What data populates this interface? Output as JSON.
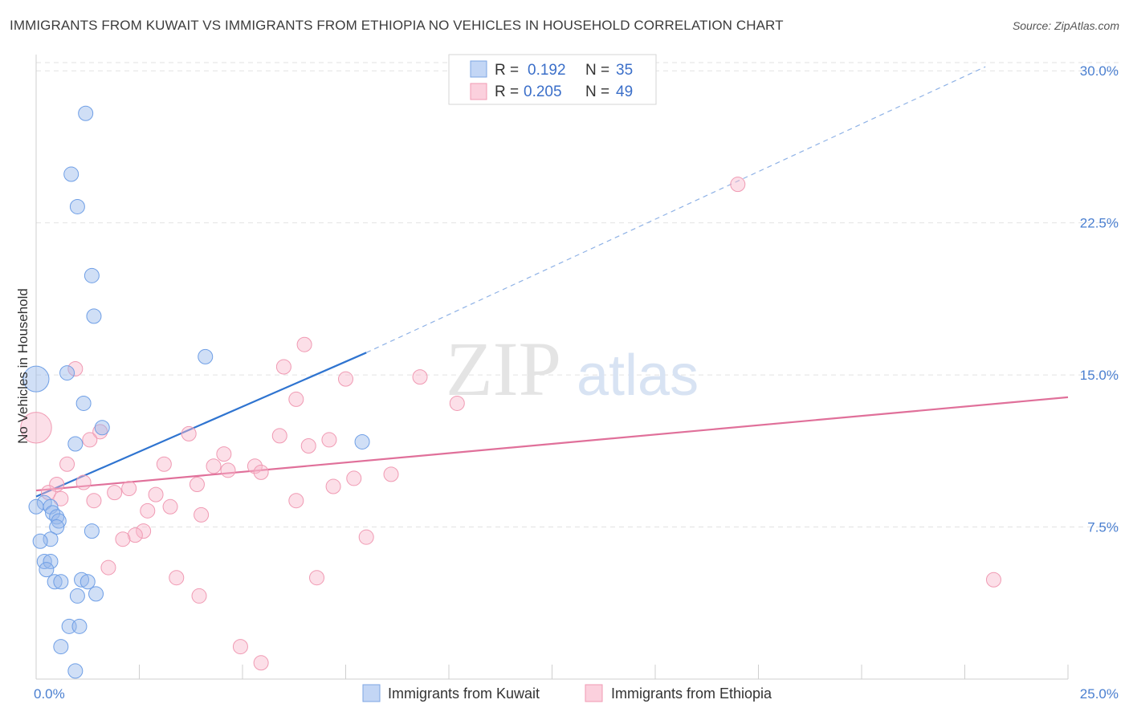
{
  "header": {
    "title": "IMMIGRANTS FROM KUWAIT VS IMMIGRANTS FROM ETHIOPIA NO VEHICLES IN HOUSEHOLD CORRELATION CHART",
    "source": "Source: ZipAtlas.com"
  },
  "watermark": {
    "zip": "ZIP",
    "atlas": "atlas"
  },
  "legend_box": {
    "r_label": "R =",
    "n_label": "N =",
    "rows": [
      {
        "r": "0.192",
        "n": "35"
      },
      {
        "r": "0.205",
        "n": "49"
      }
    ]
  },
  "chart_data": {
    "type": "scatter",
    "title": "IMMIGRANTS FROM KUWAIT VS IMMIGRANTS FROM ETHIOPIA NO VEHICLES IN HOUSEHOLD CORRELATION CHART",
    "xlabel": "",
    "ylabel": "No Vehicles in Household",
    "xlim": [
      0,
      25
    ],
    "ylim": [
      0,
      30.8
    ],
    "x_tick_labels": [
      "0.0%",
      "25.0%"
    ],
    "y_ticks": [
      7.5,
      15.0,
      22.5,
      30.0
    ],
    "y_tick_labels": [
      "7.5%",
      "15.0%",
      "22.5%",
      "30.0%"
    ],
    "grid": true,
    "legend_position": "bottom-center",
    "colors": {
      "kuwait": "#6f9fe6",
      "ethiopia": "#f09ab3",
      "kuwait_line": "#2f74d0",
      "ethiopia_line": "#e0709a"
    },
    "series": [
      {
        "name": "Immigrants from Kuwait",
        "r": 0.192,
        "n": 35,
        "trend": {
          "x_start": 0.0,
          "y_start": 9.0,
          "x_solid_end": 8.0,
          "y_solid_end": 16.1,
          "x_dash_end": 23.0,
          "y_dash_end": 30.2
        },
        "points": [
          {
            "x": 1.2,
            "y": 27.9,
            "s": 8
          },
          {
            "x": 0.85,
            "y": 24.9,
            "s": 8
          },
          {
            "x": 1.0,
            "y": 23.3,
            "s": 8
          },
          {
            "x": 1.35,
            "y": 19.9,
            "s": 8
          },
          {
            "x": 1.4,
            "y": 17.9,
            "s": 8
          },
          {
            "x": 4.1,
            "y": 15.9,
            "s": 8
          },
          {
            "x": 0.0,
            "y": 14.8,
            "s": 12
          },
          {
            "x": 0.75,
            "y": 15.1,
            "s": 8
          },
          {
            "x": 1.15,
            "y": 13.6,
            "s": 8
          },
          {
            "x": 1.6,
            "y": 12.4,
            "s": 8
          },
          {
            "x": 0.95,
            "y": 11.6,
            "s": 8
          },
          {
            "x": 7.9,
            "y": 11.7,
            "s": 8
          },
          {
            "x": 0.2,
            "y": 8.7,
            "s": 8
          },
          {
            "x": 0.35,
            "y": 8.5,
            "s": 8
          },
          {
            "x": 0.0,
            "y": 8.5,
            "s": 8
          },
          {
            "x": 0.4,
            "y": 8.2,
            "s": 8
          },
          {
            "x": 0.5,
            "y": 8.0,
            "s": 8
          },
          {
            "x": 0.55,
            "y": 7.8,
            "s": 8
          },
          {
            "x": 0.5,
            "y": 7.5,
            "s": 8
          },
          {
            "x": 1.35,
            "y": 7.3,
            "s": 8
          },
          {
            "x": 0.35,
            "y": 6.9,
            "s": 8
          },
          {
            "x": 0.1,
            "y": 6.8,
            "s": 8
          },
          {
            "x": 0.2,
            "y": 5.8,
            "s": 8
          },
          {
            "x": 0.35,
            "y": 5.8,
            "s": 8
          },
          {
            "x": 0.25,
            "y": 5.4,
            "s": 8
          },
          {
            "x": 0.45,
            "y": 4.8,
            "s": 8
          },
          {
            "x": 0.6,
            "y": 4.8,
            "s": 8
          },
          {
            "x": 1.1,
            "y": 4.9,
            "s": 8
          },
          {
            "x": 1.25,
            "y": 4.8,
            "s": 8
          },
          {
            "x": 1.45,
            "y": 4.2,
            "s": 8
          },
          {
            "x": 1.0,
            "y": 4.1,
            "s": 8
          },
          {
            "x": 0.8,
            "y": 2.6,
            "s": 8
          },
          {
            "x": 1.05,
            "y": 2.6,
            "s": 8
          },
          {
            "x": 0.6,
            "y": 1.6,
            "s": 8
          },
          {
            "x": 0.95,
            "y": 0.4,
            "s": 8
          }
        ]
      },
      {
        "name": "Immigrants from Ethiopia",
        "r": 0.205,
        "n": 49,
        "trend": {
          "x_start": 0.0,
          "y_start": 9.3,
          "x_end": 25.0,
          "y_end": 13.9
        },
        "points": [
          {
            "x": 17.0,
            "y": 24.4,
            "s": 8
          },
          {
            "x": 6.5,
            "y": 16.5,
            "s": 8
          },
          {
            "x": 0.95,
            "y": 15.3,
            "s": 8
          },
          {
            "x": 6.0,
            "y": 15.4,
            "s": 8
          },
          {
            "x": 7.5,
            "y": 14.8,
            "s": 8
          },
          {
            "x": 9.3,
            "y": 14.9,
            "s": 8
          },
          {
            "x": 6.3,
            "y": 13.8,
            "s": 8
          },
          {
            "x": 10.2,
            "y": 13.6,
            "s": 8
          },
          {
            "x": 0.0,
            "y": 12.4,
            "s": 14
          },
          {
            "x": 1.55,
            "y": 12.2,
            "s": 8
          },
          {
            "x": 3.7,
            "y": 12.1,
            "s": 8
          },
          {
            "x": 5.9,
            "y": 12.0,
            "s": 8
          },
          {
            "x": 1.3,
            "y": 11.8,
            "s": 8
          },
          {
            "x": 7.1,
            "y": 11.8,
            "s": 8
          },
          {
            "x": 6.6,
            "y": 11.5,
            "s": 8
          },
          {
            "x": 4.55,
            "y": 11.1,
            "s": 8
          },
          {
            "x": 0.75,
            "y": 10.6,
            "s": 8
          },
          {
            "x": 3.1,
            "y": 10.6,
            "s": 8
          },
          {
            "x": 4.3,
            "y": 10.5,
            "s": 8
          },
          {
            "x": 4.65,
            "y": 10.3,
            "s": 8
          },
          {
            "x": 5.3,
            "y": 10.5,
            "s": 8
          },
          {
            "x": 5.45,
            "y": 10.2,
            "s": 8
          },
          {
            "x": 8.6,
            "y": 10.1,
            "s": 8
          },
          {
            "x": 7.7,
            "y": 9.9,
            "s": 8
          },
          {
            "x": 1.15,
            "y": 9.7,
            "s": 8
          },
          {
            "x": 0.5,
            "y": 9.6,
            "s": 8
          },
          {
            "x": 3.9,
            "y": 9.6,
            "s": 8
          },
          {
            "x": 7.2,
            "y": 9.5,
            "s": 8
          },
          {
            "x": 2.25,
            "y": 9.4,
            "s": 8
          },
          {
            "x": 1.9,
            "y": 9.2,
            "s": 8
          },
          {
            "x": 0.3,
            "y": 9.2,
            "s": 8
          },
          {
            "x": 2.9,
            "y": 9.1,
            "s": 8
          },
          {
            "x": 0.6,
            "y": 8.9,
            "s": 8
          },
          {
            "x": 1.4,
            "y": 8.8,
            "s": 8
          },
          {
            "x": 6.3,
            "y": 8.8,
            "s": 8
          },
          {
            "x": 3.25,
            "y": 8.5,
            "s": 8
          },
          {
            "x": 2.7,
            "y": 8.3,
            "s": 8
          },
          {
            "x": 4.0,
            "y": 8.1,
            "s": 8
          },
          {
            "x": 2.6,
            "y": 7.3,
            "s": 8
          },
          {
            "x": 2.4,
            "y": 7.1,
            "s": 8
          },
          {
            "x": 8.0,
            "y": 7.0,
            "s": 8
          },
          {
            "x": 2.1,
            "y": 6.9,
            "s": 8
          },
          {
            "x": 1.75,
            "y": 5.5,
            "s": 8
          },
          {
            "x": 3.4,
            "y": 5.0,
            "s": 8
          },
          {
            "x": 6.8,
            "y": 5.0,
            "s": 8
          },
          {
            "x": 23.2,
            "y": 4.9,
            "s": 8
          },
          {
            "x": 3.95,
            "y": 4.1,
            "s": 8
          },
          {
            "x": 4.95,
            "y": 1.6,
            "s": 8
          },
          {
            "x": 5.45,
            "y": 0.8,
            "s": 8
          }
        ]
      }
    ]
  }
}
